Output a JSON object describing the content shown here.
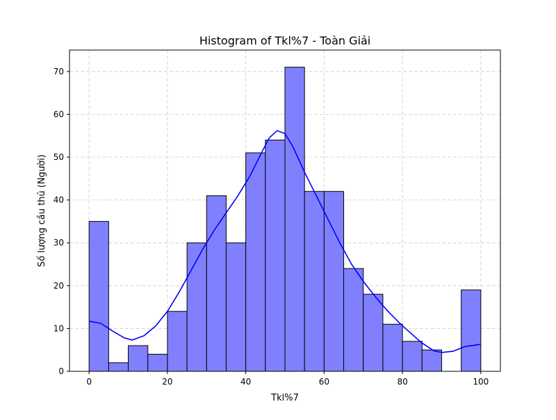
{
  "chart_data": {
    "type": "bar",
    "title": "Histogram of Tkl%7 - Toàn Giải",
    "xlabel": "Tkl%7",
    "ylabel": "Số lượng cầu thủ (Người)",
    "bin_width": 5,
    "bins": [
      {
        "start": 0,
        "end": 5,
        "count": 35
      },
      {
        "start": 5,
        "end": 10,
        "count": 2
      },
      {
        "start": 10,
        "end": 15,
        "count": 6
      },
      {
        "start": 15,
        "end": 20,
        "count": 4
      },
      {
        "start": 20,
        "end": 25,
        "count": 14
      },
      {
        "start": 25,
        "end": 30,
        "count": 30
      },
      {
        "start": 30,
        "end": 35,
        "count": 41
      },
      {
        "start": 35,
        "end": 40,
        "count": 30
      },
      {
        "start": 40,
        "end": 45,
        "count": 51
      },
      {
        "start": 45,
        "end": 50,
        "count": 54
      },
      {
        "start": 50,
        "end": 55,
        "count": 71
      },
      {
        "start": 55,
        "end": 60,
        "count": 42
      },
      {
        "start": 60,
        "end": 65,
        "count": 42
      },
      {
        "start": 65,
        "end": 70,
        "count": 24
      },
      {
        "start": 70,
        "end": 75,
        "count": 18
      },
      {
        "start": 75,
        "end": 80,
        "count": 11
      },
      {
        "start": 80,
        "end": 85,
        "count": 7
      },
      {
        "start": 85,
        "end": 90,
        "count": 5
      },
      {
        "start": 90,
        "end": 95,
        "count": 0
      },
      {
        "start": 95,
        "end": 100,
        "count": 19
      }
    ],
    "kde_curve": {
      "x": [
        0,
        3,
        6,
        9,
        11,
        14,
        17,
        20,
        23,
        26,
        29,
        32,
        35,
        38,
        41,
        44,
        46,
        48,
        50,
        52,
        55,
        58,
        61,
        64,
        67,
        70,
        73,
        76,
        79,
        82,
        85,
        88,
        90,
        93,
        96,
        100
      ],
      "y": [
        11.7,
        11.2,
        9.4,
        7.8,
        7.3,
        8.3,
        10.6,
        14.0,
        18.5,
        23.5,
        28.5,
        33.0,
        37.0,
        41.0,
        45.5,
        51.0,
        54.5,
        56.2,
        55.5,
        52.5,
        46.5,
        41.0,
        35.5,
        30.0,
        25.0,
        21.0,
        17.5,
        14.3,
        11.5,
        9.0,
        6.6,
        4.8,
        4.4,
        4.7,
        5.8,
        6.3
      ]
    },
    "xlim": [
      -5,
      105
    ],
    "ylim": [
      0,
      75
    ],
    "xticks": [
      0,
      20,
      40,
      60,
      80,
      100
    ],
    "yticks": [
      0,
      10,
      20,
      30,
      40,
      50,
      60,
      70
    ],
    "grid": true,
    "bar_color": "#8080ff",
    "bar_edge_color": "#000000",
    "curve_color": "#0000ff",
    "grid_color": "#cccccc"
  }
}
